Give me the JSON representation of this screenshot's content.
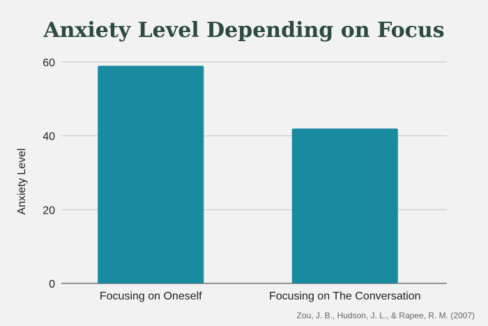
{
  "chart_data": {
    "type": "bar",
    "title": "Anxiety Level Depending on Focus",
    "categories": [
      "Focusing on Oneself",
      "Focusing on The Conversation"
    ],
    "values": [
      59,
      42
    ],
    "xlabel": "",
    "ylabel": "Anxiety Level",
    "ylim": [
      0,
      60
    ],
    "yticks": [
      0,
      20,
      40,
      60
    ],
    "grid": true,
    "bar_color": "#1a8aa0",
    "source": "Zou, J. B., Hudson, J. L., & Rapee, R. M. (2007)"
  }
}
